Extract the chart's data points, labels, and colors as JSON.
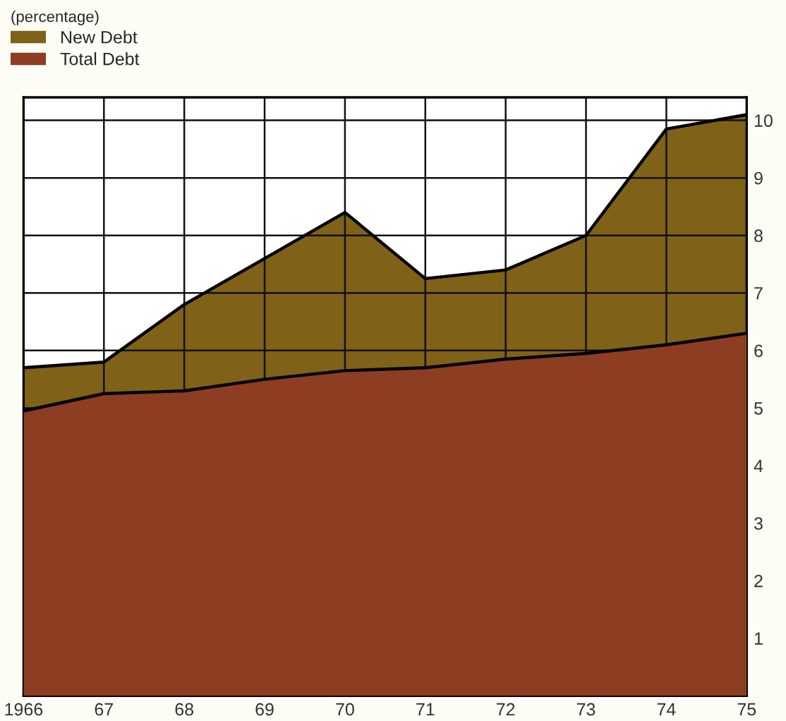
{
  "chart_data": {
    "type": "area",
    "legend_title": "(percentage)",
    "x": [
      1966,
      1967,
      1968,
      1969,
      1970,
      1971,
      1972,
      1973,
      1974,
      1975
    ],
    "series": [
      {
        "name": "New Debt",
        "color": "#7f6118",
        "values": [
          5.7,
          5.8,
          6.8,
          7.6,
          8.4,
          7.25,
          7.4,
          8.0,
          9.85,
          10.1
        ]
      },
      {
        "name": "Total Debt",
        "color": "#8c3d22",
        "values": [
          4.95,
          5.25,
          5.3,
          5.5,
          5.65,
          5.7,
          5.85,
          5.95,
          6.1,
          6.3
        ]
      }
    ],
    "xlim": [
      1966,
      1975
    ],
    "xticks": [
      {
        "value": 1966,
        "label": "1966"
      },
      {
        "value": 1967,
        "label": "67"
      },
      {
        "value": 1968,
        "label": "68"
      },
      {
        "value": 1969,
        "label": "69"
      },
      {
        "value": 1970,
        "label": "70"
      },
      {
        "value": 1971,
        "label": "71"
      },
      {
        "value": 1972,
        "label": "72"
      },
      {
        "value": 1973,
        "label": "73"
      },
      {
        "value": 1974,
        "label": "74"
      },
      {
        "value": 1975,
        "label": "75"
      }
    ],
    "ylim": [
      0,
      10.4
    ],
    "yticks": [
      1,
      2,
      3,
      4,
      5,
      6,
      7,
      8,
      9,
      10
    ],
    "grid": true,
    "legend": "top left"
  }
}
